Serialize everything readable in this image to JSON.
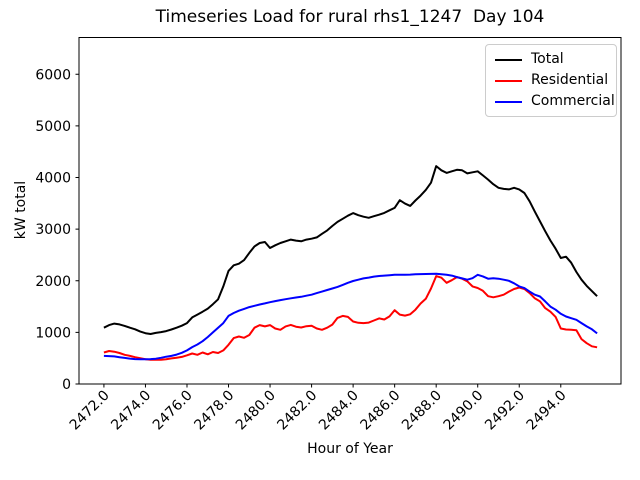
{
  "figure": {
    "background": "#ffffff",
    "axes_background": "#ffffff",
    "spine_color": "#000000"
  },
  "chart_data": {
    "type": "line",
    "title": "Timeseries Load for rural rhs1_1247  Day 104",
    "xlabel": "Hour of Year",
    "ylabel": "kW total",
    "grid": false,
    "xlim": [
      2470.8,
      2496.9
    ],
    "ylim": [
      0,
      6712
    ],
    "xticks": [
      2472,
      2474,
      2476,
      2478,
      2480,
      2482,
      2484,
      2486,
      2488,
      2490,
      2492,
      2494
    ],
    "xtick_labels": [
      "2472.0",
      "2474.0",
      "2476.0",
      "2478.0",
      "2480.0",
      "2482.0",
      "2484.0",
      "2486.0",
      "2488.0",
      "2490.0",
      "2492.0",
      "2494.0"
    ],
    "xtick_rotation": 45,
    "yticks": [
      0,
      1000,
      2000,
      3000,
      4000,
      5000,
      6000
    ],
    "ytick_labels": [
      "0",
      "1000",
      "2000",
      "3000",
      "4000",
      "5000",
      "6000"
    ],
    "legend": {
      "position": "upper right",
      "border_color": "#cccccc"
    },
    "x": [
      2472.0,
      2472.25,
      2472.5,
      2472.75,
      2473.0,
      2473.25,
      2473.5,
      2473.75,
      2474.0,
      2474.25,
      2474.5,
      2474.75,
      2475.0,
      2475.25,
      2475.5,
      2475.75,
      2476.0,
      2476.25,
      2476.5,
      2476.75,
      2477.0,
      2477.25,
      2477.5,
      2477.75,
      2478.0,
      2478.25,
      2478.5,
      2478.75,
      2479.0,
      2479.25,
      2479.5,
      2479.75,
      2480.0,
      2480.25,
      2480.5,
      2480.75,
      2481.0,
      2481.25,
      2481.5,
      2481.75,
      2482.0,
      2482.25,
      2482.5,
      2482.75,
      2483.0,
      2483.25,
      2483.5,
      2483.75,
      2484.0,
      2484.25,
      2484.5,
      2484.75,
      2485.0,
      2485.25,
      2485.5,
      2485.75,
      2486.0,
      2486.25,
      2486.5,
      2486.75,
      2487.0,
      2487.25,
      2487.5,
      2487.75,
      2488.0,
      2488.25,
      2488.5,
      2488.75,
      2489.0,
      2489.25,
      2489.5,
      2489.75,
      2490.0,
      2490.25,
      2490.5,
      2490.75,
      2491.0,
      2491.25,
      2491.5,
      2491.75,
      2492.0,
      2492.25,
      2492.5,
      2492.75,
      2493.0,
      2493.25,
      2493.5,
      2493.75,
      2494.0,
      2494.25,
      2494.5,
      2494.75,
      2495.0,
      2495.25,
      2495.5,
      2495.75
    ],
    "series": [
      {
        "name": "Total",
        "color": "#000000",
        "values": [
          1090,
          1140,
          1170,
          1155,
          1125,
          1090,
          1060,
          1015,
          985,
          968,
          990,
          1005,
          1025,
          1055,
          1090,
          1130,
          1180,
          1290,
          1345,
          1400,
          1460,
          1545,
          1640,
          1890,
          2190,
          2300,
          2330,
          2400,
          2540,
          2665,
          2732,
          2750,
          2635,
          2686,
          2732,
          2764,
          2797,
          2777,
          2764,
          2797,
          2815,
          2840,
          2910,
          2975,
          3060,
          3140,
          3200,
          3260,
          3310,
          3270,
          3240,
          3220,
          3250,
          3280,
          3315,
          3365,
          3412,
          3560,
          3495,
          3450,
          3555,
          3650,
          3760,
          3900,
          4220,
          4140,
          4090,
          4120,
          4150,
          4140,
          4080,
          4100,
          4120,
          4040,
          3960,
          3870,
          3800,
          3780,
          3770,
          3800,
          3770,
          3700,
          3540,
          3340,
          3150,
          2960,
          2780,
          2620,
          2440,
          2465,
          2350,
          2170,
          2020,
          1900,
          1800,
          1700
        ]
      },
      {
        "name": "Residential",
        "color": "#ff0000",
        "values": [
          610,
          640,
          625,
          600,
          565,
          545,
          520,
          500,
          480,
          470,
          468,
          470,
          480,
          495,
          510,
          525,
          555,
          590,
          565,
          610,
          575,
          620,
          600,
          650,
          760,
          890,
          920,
          895,
          950,
          1090,
          1140,
          1115,
          1140,
          1075,
          1050,
          1115,
          1145,
          1110,
          1095,
          1120,
          1130,
          1075,
          1050,
          1090,
          1150,
          1280,
          1320,
          1300,
          1210,
          1185,
          1180,
          1190,
          1230,
          1270,
          1250,
          1310,
          1430,
          1345,
          1325,
          1350,
          1440,
          1560,
          1650,
          1850,
          2090,
          2060,
          1960,
          2010,
          2070,
          2040,
          1990,
          1890,
          1860,
          1805,
          1700,
          1680,
          1700,
          1730,
          1790,
          1840,
          1870,
          1840,
          1760,
          1660,
          1600,
          1470,
          1400,
          1300,
          1075,
          1055,
          1050,
          1040,
          870,
          790,
          730,
          710
        ]
      },
      {
        "name": "Commercial",
        "color": "#0000ff",
        "values": [
          545,
          540,
          535,
          520,
          505,
          492,
          482,
          478,
          478,
          482,
          490,
          508,
          528,
          545,
          570,
          605,
          650,
          715,
          765,
          830,
          910,
          1000,
          1090,
          1180,
          1320,
          1375,
          1420,
          1455,
          1490,
          1515,
          1540,
          1562,
          1585,
          1605,
          1625,
          1642,
          1660,
          1675,
          1690,
          1710,
          1730,
          1760,
          1790,
          1820,
          1850,
          1880,
          1920,
          1960,
          1995,
          2020,
          2045,
          2062,
          2080,
          2092,
          2100,
          2108,
          2115,
          2115,
          2118,
          2120,
          2125,
          2128,
          2130,
          2132,
          2135,
          2125,
          2115,
          2100,
          2070,
          2045,
          2020,
          2050,
          2115,
          2085,
          2040,
          2050,
          2040,
          2020,
          2000,
          1950,
          1890,
          1858,
          1790,
          1730,
          1695,
          1600,
          1500,
          1440,
          1360,
          1307,
          1275,
          1243,
          1180,
          1115,
          1060,
          980
        ]
      }
    ]
  }
}
